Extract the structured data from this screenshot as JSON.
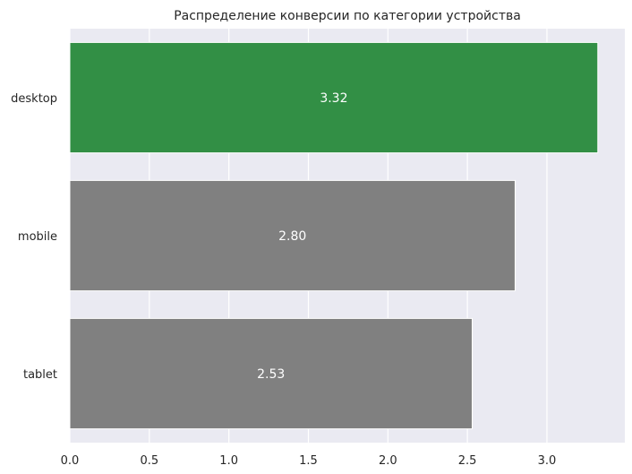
{
  "chart_data": {
    "type": "bar",
    "orientation": "horizontal",
    "title": "Распределение конверсии по категории устройства",
    "xlabel": "",
    "ylabel": "",
    "categories": [
      "desktop",
      "mobile",
      "tablet"
    ],
    "values": [
      3.32,
      2.8,
      2.53
    ],
    "value_labels": [
      "3.32",
      "2.80",
      "2.53"
    ],
    "xlim": [
      0,
      3.49
    ],
    "xticks": [
      0.0,
      0.5,
      1.0,
      1.5,
      2.0,
      2.5,
      3.0
    ],
    "xtick_labels": [
      "0.0",
      "0.5",
      "1.0",
      "1.5",
      "2.0",
      "2.5",
      "3.0"
    ],
    "grid": true,
    "colors": {
      "background": "#eaeaf2",
      "grid": "#ffffff",
      "highlight": "#328f45",
      "default": "#808080",
      "bar_label": "#ffffff"
    },
    "bar_colors": [
      "#328f45",
      "#808080",
      "#808080"
    ]
  }
}
